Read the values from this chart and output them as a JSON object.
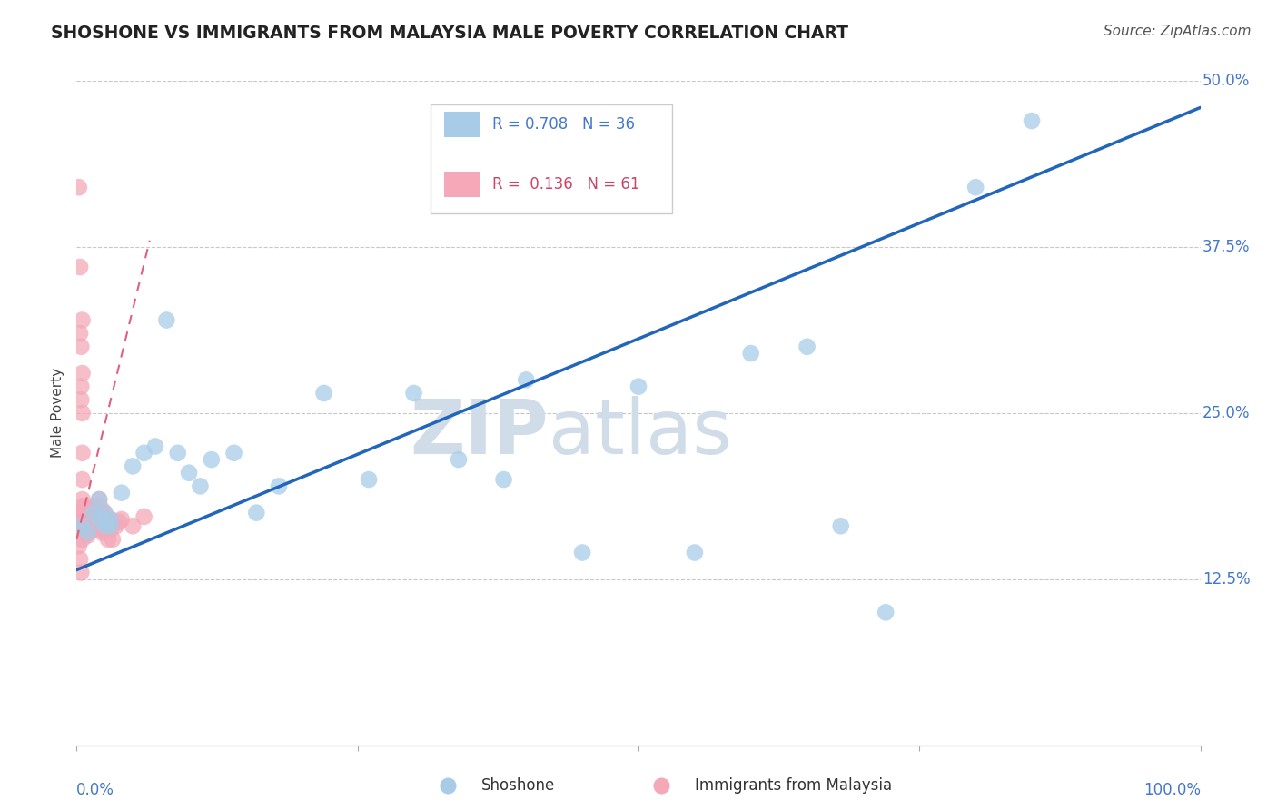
{
  "title": "SHOSHONE VS IMMIGRANTS FROM MALAYSIA MALE POVERTY CORRELATION CHART",
  "source": "Source: ZipAtlas.com",
  "ylabel": "Male Poverty",
  "ytick_values": [
    0,
    0.125,
    0.25,
    0.375,
    0.5
  ],
  "ytick_labels": [
    "",
    "12.5%",
    "25.0%",
    "37.5%",
    "50.0%"
  ],
  "xlim": [
    0,
    1.0
  ],
  "ylim": [
    0,
    0.5
  ],
  "shoshone_color": "#a8cce8",
  "malaysia_color": "#f4a8b8",
  "shoshone_line_color": "#2266bb",
  "malaysia_line_color": "#e06080",
  "watermark_color": "#d0dce8",
  "shoshone_x": [
    0.005,
    0.01,
    0.015,
    0.02,
    0.02,
    0.025,
    0.025,
    0.03,
    0.03,
    0.04,
    0.05,
    0.06,
    0.07,
    0.08,
    0.09,
    0.1,
    0.11,
    0.12,
    0.14,
    0.16,
    0.18,
    0.22,
    0.26,
    0.3,
    0.34,
    0.38,
    0.4,
    0.45,
    0.5,
    0.55,
    0.6,
    0.65,
    0.68,
    0.72,
    0.8,
    0.85
  ],
  "shoshone_y": [
    0.165,
    0.16,
    0.175,
    0.185,
    0.17,
    0.175,
    0.165,
    0.17,
    0.165,
    0.19,
    0.21,
    0.22,
    0.225,
    0.32,
    0.22,
    0.205,
    0.195,
    0.215,
    0.22,
    0.175,
    0.195,
    0.265,
    0.2,
    0.265,
    0.215,
    0.2,
    0.275,
    0.145,
    0.27,
    0.145,
    0.295,
    0.3,
    0.165,
    0.1,
    0.42,
    0.47
  ],
  "malaysia_x": [
    0.002,
    0.002,
    0.003,
    0.003,
    0.003,
    0.004,
    0.004,
    0.004,
    0.004,
    0.005,
    0.005,
    0.005,
    0.005,
    0.005,
    0.005,
    0.005,
    0.005,
    0.005,
    0.005,
    0.005,
    0.006,
    0.006,
    0.007,
    0.007,
    0.008,
    0.008,
    0.008,
    0.009,
    0.009,
    0.009,
    0.01,
    0.01,
    0.01,
    0.012,
    0.012,
    0.013,
    0.015,
    0.015,
    0.016,
    0.017,
    0.018,
    0.018,
    0.019,
    0.02,
    0.02,
    0.022,
    0.022,
    0.023,
    0.025,
    0.025,
    0.026,
    0.027,
    0.028,
    0.03,
    0.03,
    0.032,
    0.035,
    0.038,
    0.04,
    0.05,
    0.06
  ],
  "malaysia_y": [
    0.42,
    0.15,
    0.36,
    0.31,
    0.14,
    0.3,
    0.27,
    0.26,
    0.13,
    0.32,
    0.28,
    0.25,
    0.22,
    0.2,
    0.185,
    0.18,
    0.175,
    0.168,
    0.162,
    0.155,
    0.175,
    0.165,
    0.175,
    0.165,
    0.18,
    0.172,
    0.162,
    0.175,
    0.168,
    0.16,
    0.175,
    0.168,
    0.158,
    0.172,
    0.162,
    0.165,
    0.178,
    0.168,
    0.172,
    0.165,
    0.18,
    0.165,
    0.168,
    0.185,
    0.162,
    0.178,
    0.165,
    0.16,
    0.175,
    0.162,
    0.17,
    0.165,
    0.155,
    0.17,
    0.162,
    0.155,
    0.165,
    0.168,
    0.17,
    0.165,
    0.172
  ],
  "shoshone_line_x0": 0.0,
  "shoshone_line_y0": 0.132,
  "shoshone_line_x1": 1.0,
  "shoshone_line_y1": 0.48,
  "malaysia_line_x0": 0.0,
  "malaysia_line_y0": 0.155,
  "malaysia_line_x1": 0.065,
  "malaysia_line_y1": 0.38
}
